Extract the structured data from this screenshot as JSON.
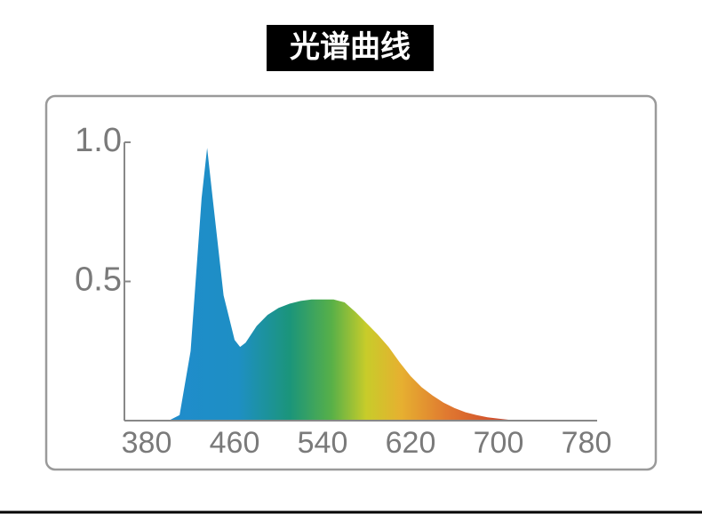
{
  "chart_data": {
    "type": "area",
    "title": "光谱曲线",
    "x": [
      400,
      410,
      420,
      430,
      435,
      440,
      450,
      460,
      465,
      470,
      480,
      490,
      500,
      510,
      520,
      530,
      540,
      550,
      560,
      570,
      580,
      590,
      600,
      610,
      620,
      630,
      640,
      650,
      660,
      670,
      680,
      690,
      700,
      710,
      720
    ],
    "values": [
      0,
      0.02,
      0.25,
      0.8,
      0.98,
      0.8,
      0.45,
      0.29,
      0.265,
      0.28,
      0.34,
      0.38,
      0.405,
      0.42,
      0.43,
      0.435,
      0.435,
      0.435,
      0.425,
      0.39,
      0.35,
      0.31,
      0.265,
      0.21,
      0.16,
      0.12,
      0.09,
      0.065,
      0.045,
      0.03,
      0.02,
      0.012,
      0.007,
      0.003,
      0
    ],
    "xlim": [
      380,
      780
    ],
    "xticks": [
      380,
      460,
      540,
      620,
      700,
      780
    ],
    "ylim": [
      0,
      1
    ],
    "yticks": [
      {
        "value": 1,
        "label": "1.0"
      },
      0.5
    ]
  }
}
